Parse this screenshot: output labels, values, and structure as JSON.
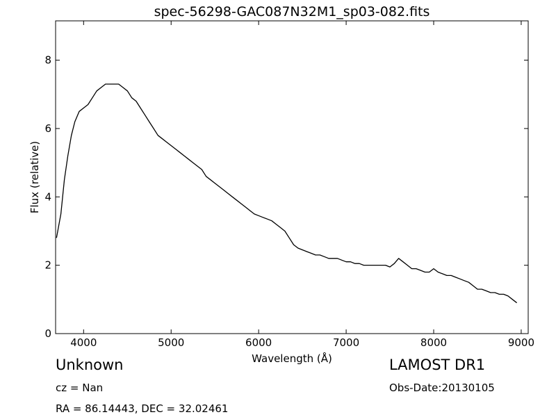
{
  "chart_data": {
    "type": "line",
    "title": "spec-56298-GAC087N32M1_sp03-082.fits",
    "xlabel": "Wavelength (Å)",
    "ylabel": "Flux (relative)",
    "xlim": [
      3680,
      9080
    ],
    "ylim": [
      0,
      9.15
    ],
    "xticks": [
      4000,
      5000,
      6000,
      7000,
      8000,
      9000
    ],
    "yticks": [
      0,
      2,
      4,
      6,
      8
    ],
    "grid": false,
    "line_color": "#000000",
    "series": [
      {
        "x": [
          3690,
          3740,
          3780,
          3820,
          3860,
          3900,
          3950,
          4000,
          4050,
          4100,
          4150,
          4200,
          4250,
          4300,
          4350,
          4400,
          4450,
          4500,
          4550,
          4600,
          4650,
          4700,
          4750,
          4800,
          4850,
          4900,
          4950,
          5000,
          5050,
          5100,
          5150,
          5200,
          5250,
          5300,
          5350,
          5400,
          5450,
          5500,
          5550,
          5600,
          5650,
          5700,
          5750,
          5800,
          5850,
          5900,
          5950,
          6000,
          6050,
          6100,
          6150,
          6200,
          6250,
          6300,
          6350,
          6400,
          6450,
          6500,
          6550,
          6600,
          6650,
          6700,
          6750,
          6800,
          6850,
          6900,
          6950,
          7000,
          7050,
          7100,
          7150,
          7200,
          7250,
          7300,
          7350,
          7400,
          7450,
          7500,
          7550,
          7600,
          7650,
          7700,
          7750,
          7800,
          7850,
          7900,
          7950,
          8000,
          8050,
          8100,
          8150,
          8200,
          8250,
          8300,
          8350,
          8400,
          8450,
          8500,
          8550,
          8600,
          8650,
          8700,
          8750,
          8800,
          8850,
          8900,
          8950
        ],
        "y": [
          2.8,
          3.5,
          4.5,
          5.2,
          5.8,
          6.2,
          6.5,
          6.6,
          6.7,
          6.9,
          7.1,
          7.2,
          7.3,
          7.3,
          7.3,
          7.3,
          7.2,
          7.1,
          6.9,
          6.8,
          6.6,
          6.4,
          6.2,
          6.0,
          5.8,
          5.7,
          5.6,
          5.5,
          5.4,
          5.3,
          5.2,
          5.1,
          5.0,
          4.9,
          4.8,
          4.6,
          4.5,
          4.4,
          4.3,
          4.2,
          4.1,
          4.0,
          3.9,
          3.8,
          3.7,
          3.6,
          3.5,
          3.45,
          3.4,
          3.35,
          3.3,
          3.2,
          3.1,
          3.0,
          2.8,
          2.6,
          2.5,
          2.45,
          2.4,
          2.35,
          2.3,
          2.3,
          2.25,
          2.2,
          2.2,
          2.2,
          2.15,
          2.1,
          2.1,
          2.05,
          2.05,
          2.0,
          2.0,
          2.0,
          2.0,
          2.0,
          2.0,
          1.95,
          2.05,
          2.2,
          2.1,
          2.0,
          1.9,
          1.9,
          1.85,
          1.8,
          1.8,
          1.9,
          1.8,
          1.75,
          1.7,
          1.7,
          1.65,
          1.6,
          1.55,
          1.5,
          1.4,
          1.3,
          1.3,
          1.25,
          1.2,
          1.2,
          1.15,
          1.15,
          1.1,
          1.0,
          0.9
        ]
      }
    ]
  },
  "annotations": {
    "object_class": "Unknown",
    "redshift": "cz = Nan",
    "coords": "RA = 86.14443, DEC = 32.02461",
    "survey": "LAMOST DR1",
    "obs_date": "Obs-Date:20130105"
  }
}
